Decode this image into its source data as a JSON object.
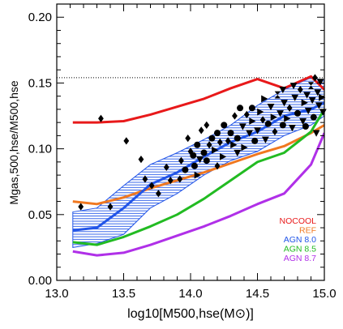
{
  "chart_data": {
    "type": "line",
    "xlabel": "log10[M500,hse(M⊙)]",
    "ylabel": "Mgas,500,hse/M500,hse",
    "xlim": [
      13.0,
      15.0
    ],
    "ylim": [
      0.0,
      0.21
    ],
    "x_ticks": [
      "13.0",
      "13.5",
      "14.0",
      "14.5",
      "15.0"
    ],
    "y_ticks": [
      "0.00",
      "0.05",
      "0.10",
      "0.15",
      "0.20"
    ],
    "reference_line_y": 0.154,
    "legend_position": "bottom-right",
    "series": [
      {
        "name": "NOCOOL",
        "color": "#e8191a",
        "x": [
          13.12,
          13.3,
          13.5,
          13.7,
          13.9,
          14.1,
          14.3,
          14.5,
          14.7,
          14.9,
          15.0
        ],
        "y": [
          0.12,
          0.12,
          0.121,
          0.126,
          0.132,
          0.138,
          0.146,
          0.153,
          0.146,
          0.155,
          0.145
        ]
      },
      {
        "name": "REF",
        "color": "#f07820",
        "x": [
          13.12,
          13.3,
          13.5,
          13.7,
          13.9,
          14.1,
          14.3,
          14.5,
          14.7,
          14.9,
          15.0
        ],
        "y": [
          0.06,
          0.058,
          0.063,
          0.07,
          0.076,
          0.082,
          0.089,
          0.096,
          0.102,
          0.112,
          0.118
        ]
      },
      {
        "name": "AGN 8.0",
        "color": "#2255e8",
        "x": [
          13.12,
          13.3,
          13.5,
          13.7,
          13.9,
          14.1,
          14.3,
          14.5,
          14.7,
          14.9,
          15.0
        ],
        "y": [
          0.038,
          0.04,
          0.055,
          0.073,
          0.082,
          0.094,
          0.105,
          0.113,
          0.125,
          0.13,
          0.135
        ]
      },
      {
        "name": "AGN 8.5",
        "color": "#22bb22",
        "x": [
          13.12,
          13.3,
          13.5,
          13.7,
          13.9,
          14.1,
          14.3,
          14.5,
          14.7,
          14.9,
          15.0
        ],
        "y": [
          0.029,
          0.027,
          0.033,
          0.041,
          0.05,
          0.062,
          0.076,
          0.09,
          0.097,
          0.113,
          0.13
        ]
      },
      {
        "name": "AGN 8.7",
        "color": "#b030e8",
        "x": [
          13.12,
          13.3,
          13.5,
          13.7,
          13.9,
          14.1,
          14.3,
          14.5,
          14.7,
          14.9,
          15.0
        ],
        "y": [
          0.022,
          0.019,
          0.021,
          0.027,
          0.034,
          0.041,
          0.049,
          0.058,
          0.066,
          0.088,
          0.112
        ]
      }
    ],
    "scatter_band": {
      "color": "#2255e8",
      "x": [
        13.12,
        13.3,
        13.5,
        13.7,
        13.9,
        14.1,
        14.3,
        14.5,
        14.7,
        14.9,
        15.0
      ],
      "upper": [
        0.052,
        0.055,
        0.072,
        0.088,
        0.097,
        0.107,
        0.118,
        0.133,
        0.145,
        0.154,
        0.152
      ],
      "lower": [
        0.025,
        0.028,
        0.035,
        0.055,
        0.066,
        0.08,
        0.091,
        0.098,
        0.11,
        0.118,
        0.125
      ]
    },
    "observations": {
      "points": [
        {
          "x": 13.33,
          "y": 0.123,
          "m": "diamond"
        },
        {
          "x": 13.18,
          "y": 0.056,
          "m": "diamond"
        },
        {
          "x": 13.4,
          "y": 0.056,
          "m": "diamond"
        },
        {
          "x": 13.52,
          "y": 0.106,
          "m": "diamond"
        },
        {
          "x": 13.63,
          "y": 0.092,
          "m": "diamond"
        },
        {
          "x": 13.66,
          "y": 0.077,
          "m": "diamond"
        },
        {
          "x": 13.71,
          "y": 0.072,
          "m": "diamond"
        },
        {
          "x": 13.76,
          "y": 0.066,
          "m": "diamond"
        },
        {
          "x": 13.82,
          "y": 0.086,
          "m": "diamond"
        },
        {
          "x": 13.85,
          "y": 0.076,
          "m": "diamond"
        },
        {
          "x": 13.92,
          "y": 0.077,
          "m": "diamond"
        },
        {
          "x": 13.93,
          "y": 0.091,
          "m": "diamond"
        },
        {
          "x": 13.96,
          "y": 0.084,
          "m": "circle"
        },
        {
          "x": 13.98,
          "y": 0.108,
          "m": "diamond"
        },
        {
          "x": 14.0,
          "y": 0.098,
          "m": "diamond"
        },
        {
          "x": 14.02,
          "y": 0.095,
          "m": "circle"
        },
        {
          "x": 14.03,
          "y": 0.087,
          "m": "circle"
        },
        {
          "x": 14.05,
          "y": 0.103,
          "m": "circle"
        },
        {
          "x": 14.07,
          "y": 0.092,
          "m": "tri-down"
        },
        {
          "x": 14.08,
          "y": 0.114,
          "m": "diamond"
        },
        {
          "x": 14.1,
          "y": 0.097,
          "m": "circle"
        },
        {
          "x": 14.12,
          "y": 0.091,
          "m": "circle"
        },
        {
          "x": 14.14,
          "y": 0.103,
          "m": "diamond"
        },
        {
          "x": 14.16,
          "y": 0.108,
          "m": "circle"
        },
        {
          "x": 14.18,
          "y": 0.099,
          "m": "tri-right"
        },
        {
          "x": 14.2,
          "y": 0.112,
          "m": "circle"
        },
        {
          "x": 14.22,
          "y": 0.105,
          "m": "diamond"
        },
        {
          "x": 14.24,
          "y": 0.094,
          "m": "tri-right"
        },
        {
          "x": 14.25,
          "y": 0.118,
          "m": "circle"
        },
        {
          "x": 14.28,
          "y": 0.106,
          "m": "diamond"
        },
        {
          "x": 14.3,
          "y": 0.112,
          "m": "circle"
        },
        {
          "x": 14.32,
          "y": 0.103,
          "m": "tri-right"
        },
        {
          "x": 14.33,
          "y": 0.125,
          "m": "diamond"
        },
        {
          "x": 14.35,
          "y": 0.108,
          "m": "circle"
        },
        {
          "x": 14.37,
          "y": 0.131,
          "m": "circle"
        },
        {
          "x": 14.39,
          "y": 0.117,
          "m": "tri-down"
        },
        {
          "x": 14.4,
          "y": 0.101,
          "m": "tri-right"
        },
        {
          "x": 14.42,
          "y": 0.126,
          "m": "diamond"
        },
        {
          "x": 14.44,
          "y": 0.112,
          "m": "tri-down"
        },
        {
          "x": 14.46,
          "y": 0.121,
          "m": "tri-right"
        },
        {
          "x": 14.48,
          "y": 0.106,
          "m": "circle"
        },
        {
          "x": 14.5,
          "y": 0.114,
          "m": "tri-down"
        },
        {
          "x": 14.52,
          "y": 0.128,
          "m": "tri-right"
        },
        {
          "x": 14.54,
          "y": 0.122,
          "m": "diamond"
        },
        {
          "x": 14.56,
          "y": 0.107,
          "m": "tri-down"
        },
        {
          "x": 14.58,
          "y": 0.119,
          "m": "circle"
        },
        {
          "x": 14.6,
          "y": 0.132,
          "m": "tri-down"
        },
        {
          "x": 14.62,
          "y": 0.124,
          "m": "tri-right"
        },
        {
          "x": 14.63,
          "y": 0.113,
          "m": "diamond"
        },
        {
          "x": 14.65,
          "y": 0.141,
          "m": "hourglass"
        },
        {
          "x": 14.67,
          "y": 0.127,
          "m": "tri-down"
        },
        {
          "x": 14.69,
          "y": 0.118,
          "m": "circle"
        },
        {
          "x": 14.7,
          "y": 0.135,
          "m": "tri-down"
        },
        {
          "x": 14.72,
          "y": 0.123,
          "m": "tri-right"
        },
        {
          "x": 14.74,
          "y": 0.131,
          "m": "diamond"
        },
        {
          "x": 14.76,
          "y": 0.116,
          "m": "tri-down"
        },
        {
          "x": 14.78,
          "y": 0.139,
          "m": "tri-down"
        },
        {
          "x": 14.8,
          "y": 0.127,
          "m": "circle"
        },
        {
          "x": 14.82,
          "y": 0.145,
          "m": "diamond"
        },
        {
          "x": 14.84,
          "y": 0.121,
          "m": "tri-down"
        },
        {
          "x": 14.85,
          "y": 0.135,
          "m": "tri-right"
        },
        {
          "x": 14.87,
          "y": 0.141,
          "m": "tri-down"
        },
        {
          "x": 14.88,
          "y": 0.129,
          "m": "tri-down"
        },
        {
          "x": 14.9,
          "y": 0.148,
          "m": "hourglass"
        },
        {
          "x": 14.91,
          "y": 0.137,
          "m": "tri-down"
        },
        {
          "x": 14.92,
          "y": 0.124,
          "m": "circle"
        },
        {
          "x": 14.93,
          "y": 0.154,
          "m": "diamond"
        },
        {
          "x": 14.95,
          "y": 0.143,
          "m": "tri-down"
        },
        {
          "x": 14.96,
          "y": 0.133,
          "m": "tri-down"
        },
        {
          "x": 14.97,
          "y": 0.151,
          "m": "tri-down"
        },
        {
          "x": 14.98,
          "y": 0.139,
          "m": "tri-right"
        },
        {
          "x": 14.99,
          "y": 0.128,
          "m": "tri-down"
        },
        {
          "x": 14.94,
          "y": 0.112,
          "m": "tri-down"
        },
        {
          "x": 14.86,
          "y": 0.117,
          "m": "circle"
        },
        {
          "x": 14.77,
          "y": 0.148,
          "m": "tri-down"
        },
        {
          "x": 14.69,
          "y": 0.145,
          "m": "tri-down"
        },
        {
          "x": 14.55,
          "y": 0.138,
          "m": "tri-right"
        },
        {
          "x": 14.46,
          "y": 0.131,
          "m": "circle"
        },
        {
          "x": 14.35,
          "y": 0.097,
          "m": "tri-down"
        },
        {
          "x": 14.2,
          "y": 0.087,
          "m": "diamond"
        },
        {
          "x": 14.12,
          "y": 0.118,
          "m": "diamond"
        },
        {
          "x": 14.05,
          "y": 0.08,
          "m": "tri-right"
        }
      ]
    }
  }
}
